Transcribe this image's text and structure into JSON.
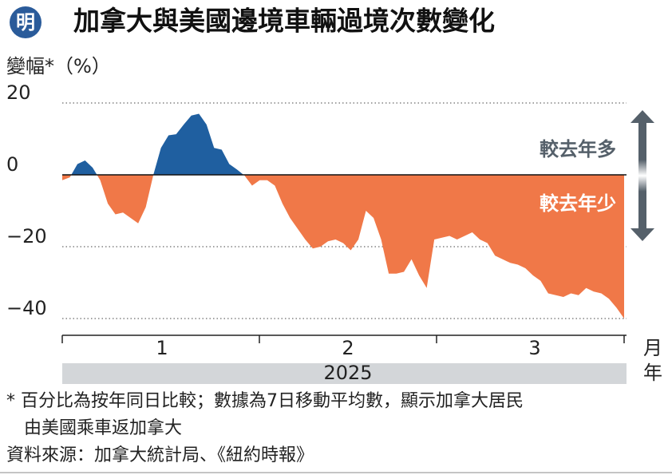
{
  "logo": "明",
  "chart_data": {
    "type": "area",
    "title": "加拿大與美國邊境車輛過境次數變化",
    "y_label": "變幅*（%）",
    "months": [
      "1",
      "2",
      "3"
    ],
    "month_unit": "月",
    "year": "2025",
    "year_unit": "年",
    "annotations": [
      "較去年多",
      "較去年少"
    ],
    "positive_color": "#1f5fa0",
    "negative_color": "#f07848",
    "ylim": [
      -45,
      22
    ],
    "yticks": [
      20,
      0,
      {
        "value": -20,
        "label": "−20"
      },
      {
        "value": -40,
        "label": "−40"
      }
    ],
    "grid": true,
    "values": [
      -1.5,
      -0.7,
      3,
      4,
      2,
      -1.5,
      -8,
      -11,
      -10.5,
      -12,
      -13.5,
      -9,
      0,
      7.5,
      11,
      11.3,
      14,
      16.5,
      17,
      14,
      7.5,
      7,
      3,
      1.5,
      -0.2,
      -3,
      -1.5,
      -1.5,
      -3,
      -8,
      -12,
      -15,
      -18,
      -20.5,
      -20,
      -18.5,
      -18,
      -19,
      -21,
      -18,
      -10,
      -12,
      -18,
      -27.5,
      -27.5,
      -27,
      -23.5,
      -28,
      -31.5,
      -18,
      -17.5,
      -17,
      -18,
      -17,
      -16,
      -18,
      -19,
      -22.5,
      -23.5,
      -24.5,
      -25,
      -26,
      -28,
      -29.5,
      -33,
      -33.5,
      -34,
      -33,
      -33.5,
      -31.5,
      -32.5,
      -33,
      -34.5,
      -37,
      -40
    ]
  },
  "notes": [
    "* 百分比為按年同日比較；數據為7日移動平均數，顯示加拿大居民",
    "由美國乘車返加拿大",
    "資料來源：加拿大統計局、《紐約時報》"
  ]
}
